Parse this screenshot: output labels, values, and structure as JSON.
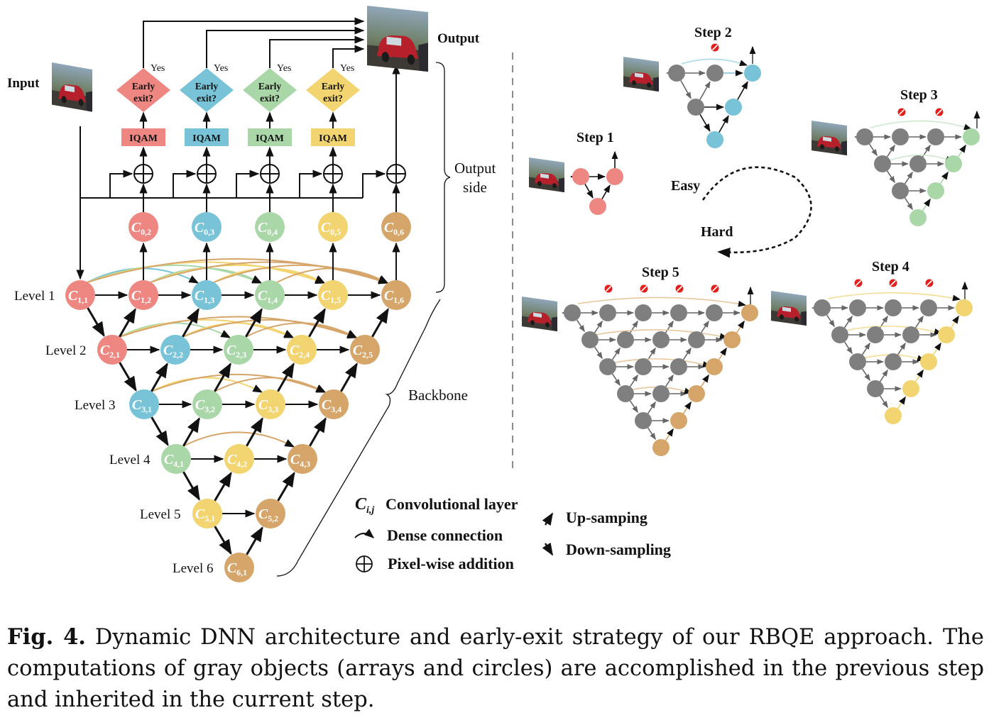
{
  "colors": {
    "red": "#ee8782",
    "blue": "#78c3d8",
    "green": "#a9d7a8",
    "yellow": "#f2d470",
    "brown": "#d6a56a",
    "gray": "#7f7f7f",
    "light_green": "#cfe8cf"
  },
  "labels": {
    "input": "Input",
    "output": "Output",
    "output_side": [
      "Output",
      "side"
    ],
    "backbone": "Backbone",
    "yes": "Yes",
    "early_exit": [
      "Early",
      "exit?"
    ],
    "iqam": "IQAM",
    "levels": [
      "Level 1",
      "Level 2",
      "Level 3",
      "Level 4",
      "Level 5",
      "Level 6"
    ],
    "easy": "Easy",
    "hard": "Hard",
    "steps": [
      "Step 1",
      "Step 2",
      "Step 3",
      "Step 4",
      "Step 5"
    ]
  },
  "nodes": [
    {
      "n": "C",
      "sub": "0,2",
      "color": "red"
    },
    {
      "n": "C",
      "sub": "0,3",
      "color": "blue"
    },
    {
      "n": "C",
      "sub": "0,4",
      "color": "green"
    },
    {
      "n": "C",
      "sub": "0,5",
      "color": "yellow"
    },
    {
      "n": "C",
      "sub": "0,6",
      "color": "brown"
    },
    {
      "n": "C",
      "sub": "1,1",
      "color": "red"
    },
    {
      "n": "C",
      "sub": "1,2",
      "color": "red"
    },
    {
      "n": "C",
      "sub": "1,3",
      "color": "blue"
    },
    {
      "n": "C",
      "sub": "1,4",
      "color": "green"
    },
    {
      "n": "C",
      "sub": "1,5",
      "color": "yellow"
    },
    {
      "n": "C",
      "sub": "1,6",
      "color": "brown"
    },
    {
      "n": "C",
      "sub": "2,1",
      "color": "red"
    },
    {
      "n": "C",
      "sub": "2,2",
      "color": "blue"
    },
    {
      "n": "C",
      "sub": "2,3",
      "color": "green"
    },
    {
      "n": "C",
      "sub": "2,4",
      "color": "yellow"
    },
    {
      "n": "C",
      "sub": "2,5",
      "color": "brown"
    },
    {
      "n": "C",
      "sub": "3,1",
      "color": "blue"
    },
    {
      "n": "C",
      "sub": "3,2",
      "color": "green"
    },
    {
      "n": "C",
      "sub": "3,3",
      "color": "yellow"
    },
    {
      "n": "C",
      "sub": "3,4",
      "color": "brown"
    },
    {
      "n": "C",
      "sub": "4,1",
      "color": "green"
    },
    {
      "n": "C",
      "sub": "4,2",
      "color": "yellow"
    },
    {
      "n": "C",
      "sub": "4,3",
      "color": "brown"
    },
    {
      "n": "C",
      "sub": "5,1",
      "color": "yellow"
    },
    {
      "n": "C",
      "sub": "5,2",
      "color": "brown"
    },
    {
      "n": "C",
      "sub": "6,1",
      "color": "brown"
    }
  ],
  "legend": {
    "conv_symbol": "C",
    "conv_sub": "i,j",
    "conv_label": "Convolutional layer",
    "dense_label": "Dense connection",
    "addition_label": "Pixel-wise addition",
    "up_label": "Up-samping",
    "down_label": "Down-sampling"
  },
  "caption": {
    "fig_label": "Fig. 4.",
    "text": " Dynamic DNN architecture and early-exit strategy of our RBQE approach. The computations of gray objects (arrays and circles) are accomplished in the previous step and inherited in the current step."
  }
}
